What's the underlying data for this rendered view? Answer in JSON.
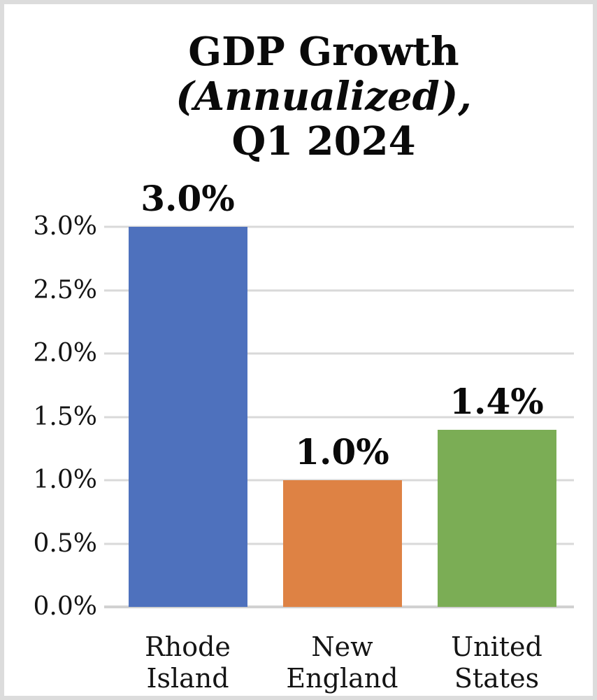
{
  "frame": {
    "border_color": "#dcdcdc",
    "background": "#ffffff"
  },
  "chart_data": {
    "type": "bar",
    "title": "GDP Growth (Annualized), Q1 2024",
    "title_lines": [
      "GDP Growth",
      "(Annualized),",
      "Q1 2024"
    ],
    "title_italic_line_index": 1,
    "categories": [
      "Rhode Island",
      "New England",
      "United States"
    ],
    "values": [
      3.0,
      1.0,
      1.4
    ],
    "points": [
      {
        "label": "Rhode Island",
        "label_lines": [
          "Rhode",
          "Island"
        ],
        "value": 3.0,
        "display": "3.0%",
        "color": "#4e71bd"
      },
      {
        "label": "New England",
        "label_lines": [
          "New",
          "England"
        ],
        "value": 1.0,
        "display": "1.0%",
        "color": "#de8244"
      },
      {
        "label": "United States",
        "label_lines": [
          "United",
          "States"
        ],
        "value": 1.4,
        "display": "1.4%",
        "color": "#7bad55"
      }
    ],
    "xlabel": "",
    "ylabel": "",
    "ylim": [
      0,
      3.0
    ],
    "yticks": [
      0,
      0.5,
      1.0,
      1.5,
      2.0,
      2.5,
      3.0
    ],
    "ytick_labels": [
      "0.0%",
      "0.5%",
      "1.0%",
      "1.5%",
      "2.0%",
      "2.5%",
      "3.0%"
    ],
    "grid": "horizontal",
    "gridline_color": "#d9d9d9",
    "baseline_color": "#d1d1d1",
    "legend": "none",
    "text_color": "#0a0a0a"
  }
}
